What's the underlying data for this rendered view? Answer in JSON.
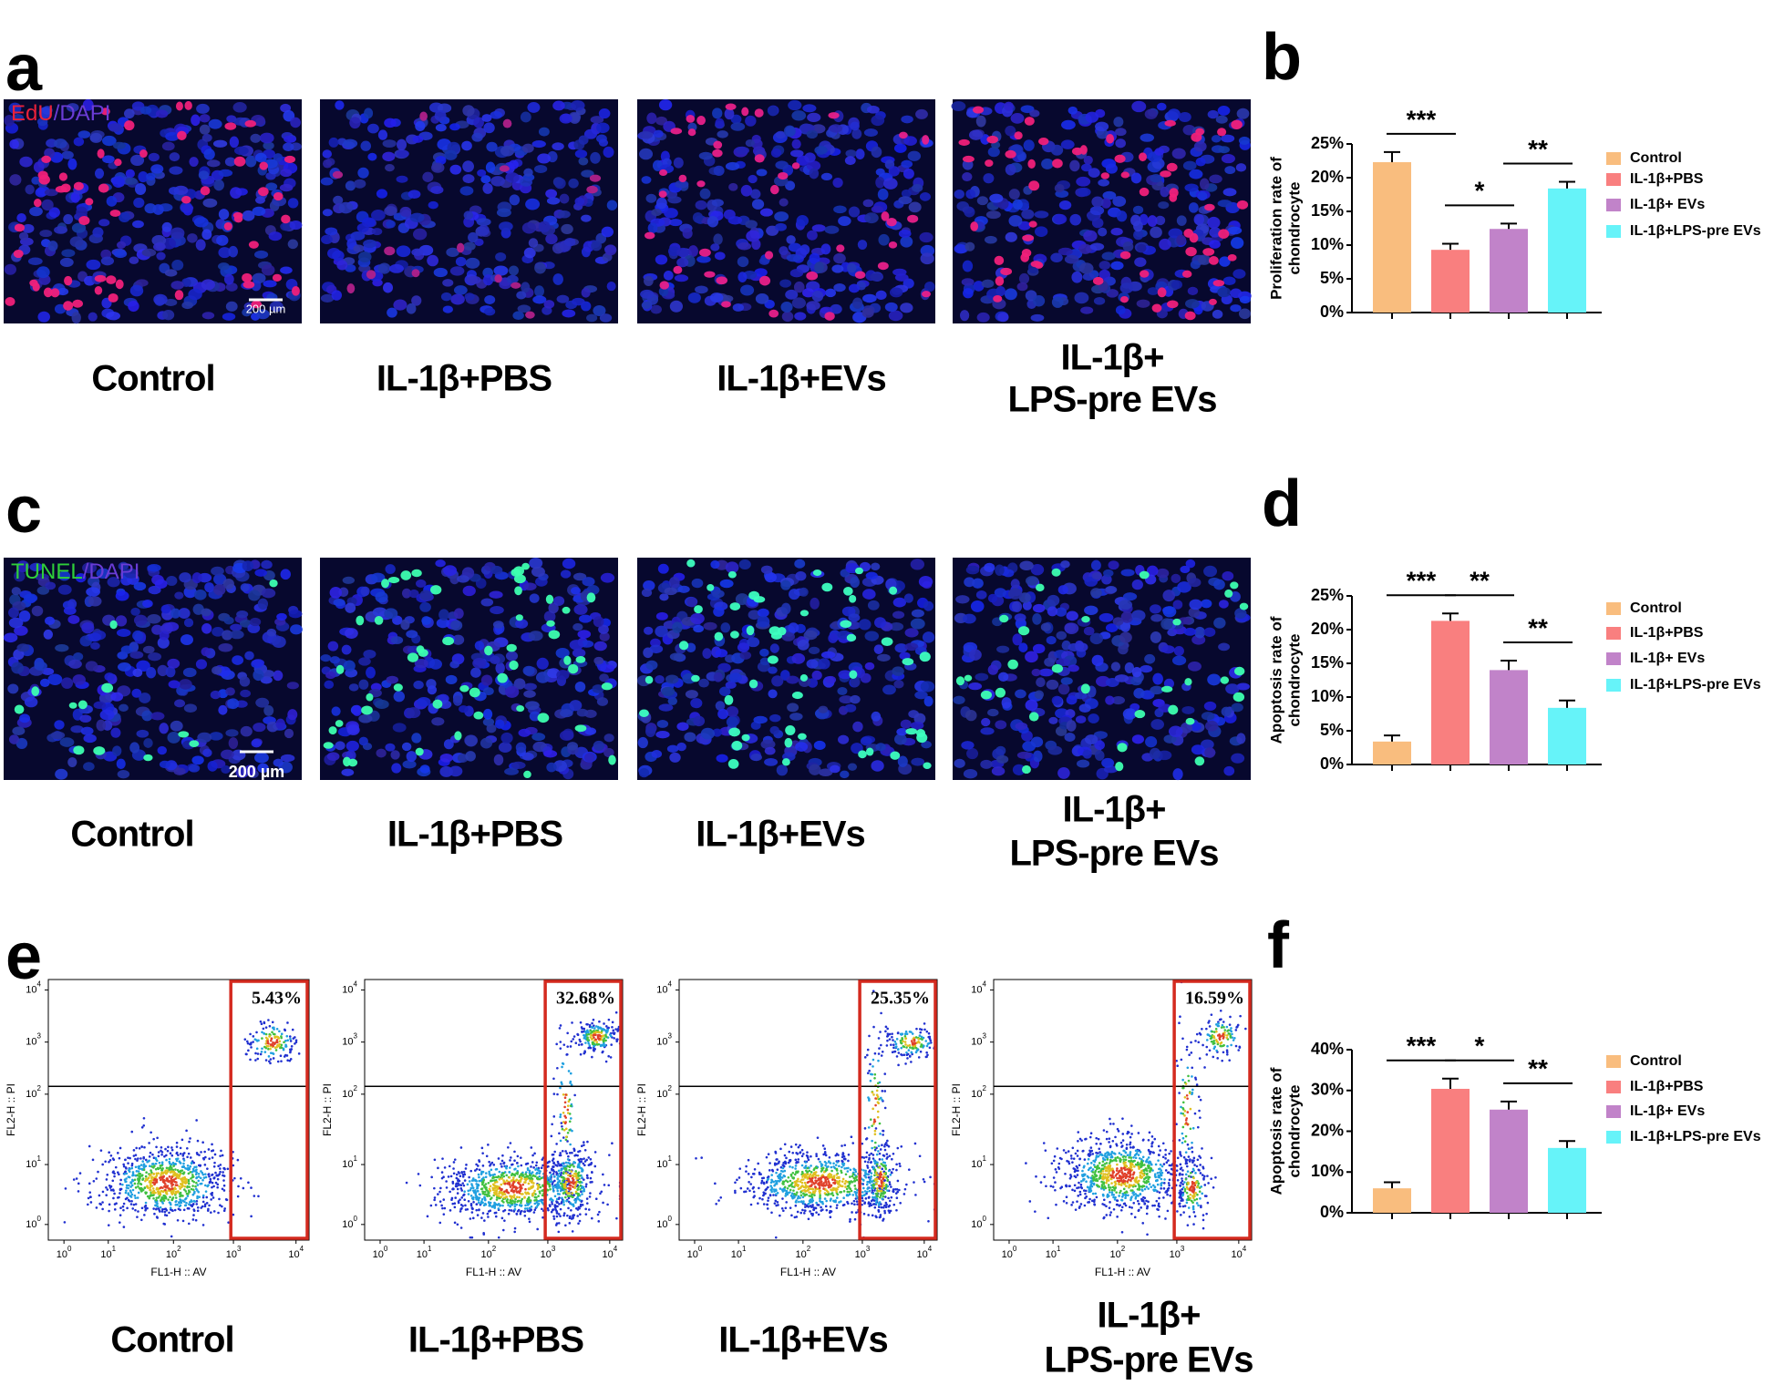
{
  "panels": [
    "a",
    "b",
    "c",
    "d",
    "e",
    "f"
  ],
  "groups": [
    [
      "Control"
    ],
    [
      "IL-1β+PBS"
    ],
    [
      "IL-1β+EVs"
    ],
    [
      "IL-1β+",
      "LPS-pre EVs"
    ]
  ],
  "edu_panel": {
    "stain": [
      "EdU",
      "/DAPI"
    ],
    "scale_bar": "200 µm"
  },
  "tunel_panel": {
    "stain": [
      "TUNEL",
      "/DAPI"
    ],
    "scale_bar": "200 µm"
  },
  "flow_panel": {
    "x_label": "FL1-H :: AV",
    "y_label": "FL2-H :: PI",
    "tick_base": "10",
    "tick_exponents": [
      "0",
      "1",
      "2",
      "3",
      "4"
    ],
    "gate_percents": [
      "5.43%",
      "32.68%",
      "25.35%",
      "16.59%"
    ]
  },
  "chart_data": [
    {
      "type": "bar",
      "ylabel": [
        "Proliferation rate of",
        "chondrocyte"
      ],
      "categories": [
        "Control",
        "IL-1β+PBS",
        "IL-1β+ EVs",
        "IL-1β+LPS-pre EVs"
      ],
      "values": [
        22.3,
        9.3,
        12.4,
        18.4
      ],
      "errors": [
        1.5,
        0.9,
        0.8,
        1.0
      ],
      "colors": [
        "#f9bd7e",
        "#f97f7f",
        "#c183c9",
        "#66f3f9"
      ],
      "ylim": [
        0,
        25
      ],
      "yticks": [
        {
          "value": 0,
          "label": "0%"
        },
        {
          "value": 5,
          "label": "5%"
        },
        {
          "value": 10,
          "label": "10%"
        },
        {
          "value": 15,
          "label": "15%"
        },
        {
          "value": 20,
          "label": "20%"
        },
        {
          "value": 25,
          "label": "25%"
        }
      ],
      "annotations": [
        {
          "text": "***",
          "between": [
            "Control",
            "IL-1β+PBS"
          ]
        },
        {
          "text": "*",
          "between": [
            "IL-1β+PBS",
            "IL-1β+ EVs"
          ]
        },
        {
          "text": "**",
          "between": [
            "IL-1β+ EVs",
            "IL-1β+LPS-pre EVs"
          ]
        }
      ]
    },
    {
      "type": "bar",
      "ylabel": [
        "Apoptosis rate of",
        "chondrocyte"
      ],
      "categories": [
        "Control",
        "IL-1β+PBS",
        "IL-1β+ EVs",
        "IL-1β+LPS-pre EVs"
      ],
      "values": [
        3.4,
        21.3,
        14.0,
        8.4
      ],
      "errors": [
        0.9,
        1.1,
        1.4,
        1.1
      ],
      "colors": [
        "#f9bd7e",
        "#f97f7f",
        "#c183c9",
        "#66f3f9"
      ],
      "ylim": [
        0,
        25
      ],
      "yticks": [
        {
          "value": 0,
          "label": "0%"
        },
        {
          "value": 5,
          "label": "5%"
        },
        {
          "value": 10,
          "label": "10%"
        },
        {
          "value": 15,
          "label": "15%"
        },
        {
          "value": 20,
          "label": "20%"
        },
        {
          "value": 25,
          "label": "25%"
        }
      ],
      "annotations": [
        {
          "text": "***",
          "between": [
            "Control",
            "IL-1β+PBS"
          ]
        },
        {
          "text": "**",
          "between": [
            "IL-1β+PBS",
            "IL-1β+ EVs"
          ]
        },
        {
          "text": "**",
          "between": [
            "IL-1β+ EVs",
            "IL-1β+LPS-pre EVs"
          ]
        }
      ]
    },
    {
      "type": "bar",
      "ylabel": [
        "Apoptosis rate of",
        "chondrocyte"
      ],
      "categories": [
        "Control",
        "IL-1β+PBS",
        "IL-1β+ EVs",
        "IL-1β+LPS-pre EVs"
      ],
      "values": [
        6.0,
        30.4,
        25.3,
        15.9
      ],
      "errors": [
        1.5,
        2.5,
        2.0,
        1.7
      ],
      "colors": [
        "#f9bd7e",
        "#f97f7f",
        "#c183c9",
        "#66f3f9"
      ],
      "ylim": [
        0,
        40
      ],
      "yticks": [
        {
          "value": 0,
          "label": "0%"
        },
        {
          "value": 10,
          "label": "10%"
        },
        {
          "value": 20,
          "label": "20%"
        },
        {
          "value": 30,
          "label": "30%"
        },
        {
          "value": 40,
          "label": "40%"
        }
      ],
      "annotations": [
        {
          "text": "***",
          "between": [
            "Control",
            "IL-1β+PBS"
          ]
        },
        {
          "text": "*",
          "between": [
            "IL-1β+PBS",
            "IL-1β+ EVs"
          ]
        },
        {
          "text": "**",
          "between": [
            "IL-1β+ EVs",
            "IL-1β+LPS-pre EVs"
          ]
        }
      ]
    }
  ]
}
